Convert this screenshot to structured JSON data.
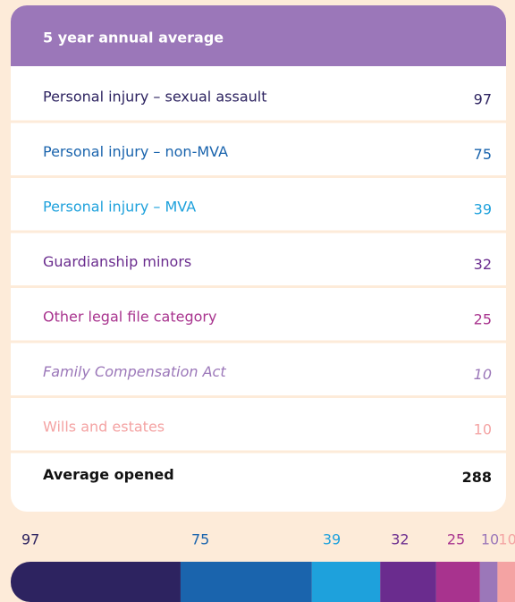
{
  "table": {
    "title": "5 year annual average",
    "rows": [
      {
        "label": "Personal  injury – sexual assault",
        "value": 97,
        "color": "#2d2360"
      },
      {
        "label": "Personal injury – non-MVA",
        "value": 75,
        "color": "#1a64ad"
      },
      {
        "label": "Personal injury – MVA",
        "value": 39,
        "color": "#1ea1dc"
      },
      {
        "label": "Guardianship minors",
        "value": 32,
        "color": "#6a2c8e"
      },
      {
        "label": "Other legal file category",
        "value": 25,
        "color": "#a8338e"
      },
      {
        "label": "Family Compensation Act",
        "value": 10,
        "color": "#9b77b9",
        "italic": true
      },
      {
        "label": "Wills and estates",
        "value": 10,
        "color": "#f4a3a3"
      }
    ],
    "total": {
      "label": "Average opened",
      "value": 288
    }
  }
}
